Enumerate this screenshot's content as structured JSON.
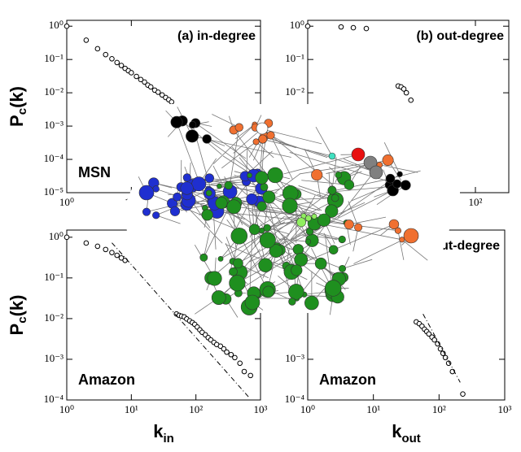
{
  "chart_data": [
    {
      "type": "scatter",
      "title": "(a) in-degree",
      "label": "MSN",
      "ylabel": [
        "P",
        "c",
        "(k)"
      ],
      "log_x": true,
      "log_y": true,
      "xlim": [
        1,
        1000
      ],
      "xticks": [
        {
          "value": 1,
          "label": "10⁰"
        },
        {
          "value": 10,
          "label": "10¹"
        }
      ],
      "ylim": [
        1e-05,
        1.5
      ],
      "yticks": [
        {
          "value": 1,
          "label": "10⁰"
        },
        {
          "value": 0.1,
          "label": "10⁻¹"
        },
        {
          "value": 0.01,
          "label": "10⁻²"
        },
        {
          "value": 0.001,
          "label": "10⁻³"
        },
        {
          "value": 0.0001,
          "label": "10⁻⁴"
        },
        {
          "value": 1e-05,
          "label": "10⁻⁵"
        }
      ],
      "series": [
        {
          "color": "#000000",
          "marker": "o",
          "x": [
            1,
            2,
            3,
            4,
            5,
            6,
            7,
            8,
            9,
            10,
            12,
            14,
            16,
            18,
            20,
            23,
            26,
            30,
            34,
            38,
            42
          ],
          "values": [
            1,
            0.38,
            0.21,
            0.14,
            0.105,
            0.081,
            0.066,
            0.054,
            0.046,
            0.04,
            0.031,
            0.025,
            0.021,
            0.017,
            0.015,
            0.012,
            0.0104,
            0.0086,
            0.0072,
            0.0062,
            0.0053
          ]
        }
      ]
    },
    {
      "type": "scatter",
      "title": "(b) out-degree",
      "log_x": true,
      "log_y": true,
      "xlim": [
        1,
        250
      ],
      "xticks": [
        {
          "value": 1,
          "label": "10⁰"
        },
        {
          "value": 100,
          "label": "10²"
        }
      ],
      "ylim": [
        1e-05,
        1.5
      ],
      "yticks": [
        {
          "value": 1,
          "label": "10⁰"
        },
        {
          "value": 0.1,
          "label": "10⁻¹"
        },
        {
          "value": 0.01,
          "label": "10⁻²"
        }
      ],
      "series": [
        {
          "color": "#000000",
          "marker": "o",
          "x": [
            1,
            2.5,
            3.5,
            5,
            12,
            13,
            14,
            15,
            17
          ],
          "values": [
            1,
            0.95,
            0.9,
            0.85,
            0.016,
            0.015,
            0.013,
            0.01,
            0.006
          ]
        }
      ]
    },
    {
      "type": "scatter",
      "label": "Amazon",
      "ylabel": [
        "P",
        "c",
        "(k)"
      ],
      "xlabel": [
        "k",
        "in"
      ],
      "log_x": true,
      "log_y": true,
      "xlim": [
        1,
        1000
      ],
      "xticks": [
        {
          "value": 1,
          "label": "10⁰"
        },
        {
          "value": 10,
          "label": "10¹"
        },
        {
          "value": 100,
          "label": "10²"
        },
        {
          "value": 1000,
          "label": "10³"
        }
      ],
      "ylim": [
        0.0001,
        1.5
      ],
      "yticks": [
        {
          "value": 1,
          "label": "10⁰"
        },
        {
          "value": 0.1,
          "label": "10⁻¹"
        },
        {
          "value": 0.01,
          "label": "10⁻²"
        },
        {
          "value": 0.001,
          "label": "10⁻³"
        },
        {
          "value": 0.0001,
          "label": "10⁻⁴"
        }
      ],
      "series": [
        {
          "color": "#000000",
          "marker": "o",
          "x": [
            1,
            2,
            3,
            4,
            5,
            6,
            7,
            8,
            50,
            55,
            60,
            66,
            72,
            80,
            88,
            96,
            105,
            115,
            125,
            140,
            155,
            170,
            190,
            210,
            240,
            270,
            300,
            350,
            400,
            480,
            560,
            700
          ],
          "values": [
            1,
            0.72,
            0.6,
            0.5,
            0.42,
            0.36,
            0.31,
            0.27,
            0.013,
            0.012,
            0.0115,
            0.011,
            0.0098,
            0.0088,
            0.008,
            0.0072,
            0.0062,
            0.0053,
            0.0046,
            0.004,
            0.0034,
            0.003,
            0.0026,
            0.0023,
            0.0021,
            0.0018,
            0.0015,
            0.0013,
            0.0011,
            0.0008,
            0.0005,
            0.0004
          ]
        },
        {
          "color": "#000000",
          "style": "dashdot",
          "x": [
            5,
            650
          ],
          "values": [
            0.73,
            0.00012
          ]
        }
      ]
    },
    {
      "type": "scatter",
      "title": "(d) out-degree",
      "label": "Amazon",
      "xlabel": [
        "k",
        "out"
      ],
      "log_x": true,
      "log_y": true,
      "xlim": [
        1,
        1000
      ],
      "xticks": [
        {
          "value": 1,
          "label": "10⁰"
        },
        {
          "value": 10,
          "label": "10¹"
        },
        {
          "value": 100,
          "label": "10²"
        },
        {
          "value": 1000,
          "label": "10³"
        }
      ],
      "ylim": [
        0.0001,
        1.5
      ],
      "yticks": [
        {
          "value": 0.001,
          "label": "10⁻³"
        },
        {
          "value": 0.0001,
          "label": "10⁻⁴"
        }
      ],
      "series": [
        {
          "color": "#000000",
          "marker": "o",
          "x": [
            1,
            45,
            50,
            55,
            60,
            65,
            70,
            78,
            85,
            95,
            105,
            115,
            125,
            140,
            160,
            230
          ],
          "values": [
            1,
            0.0083,
            0.0075,
            0.0065,
            0.0055,
            0.0048,
            0.0042,
            0.0035,
            0.003,
            0.0024,
            0.0018,
            0.0014,
            0.0011,
            0.0008,
            0.0005,
            0.00014
          ]
        },
        {
          "color": "#000000",
          "style": "dashdot",
          "x": [
            57,
            210
          ],
          "values": [
            0.013,
            0.00027
          ]
        }
      ]
    }
  ]
}
